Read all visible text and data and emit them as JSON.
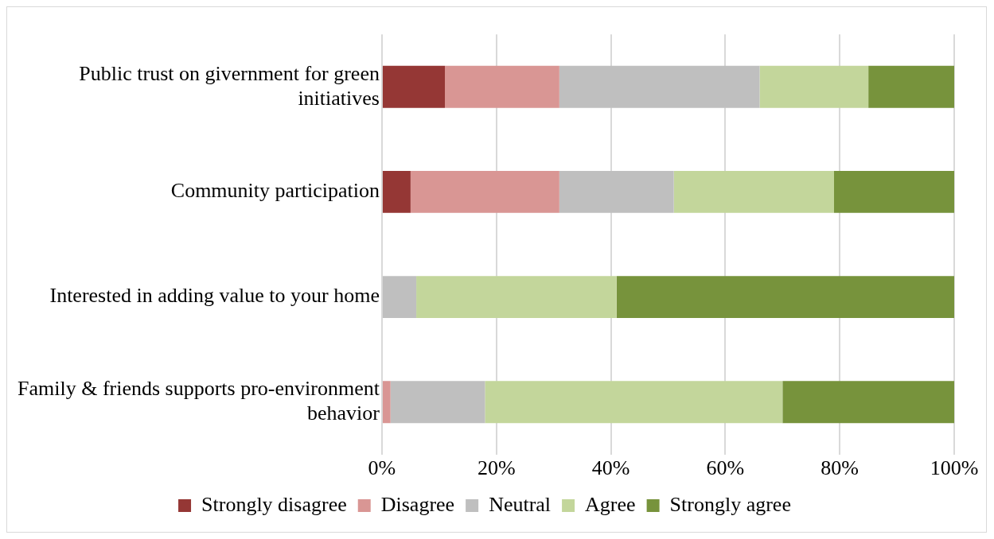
{
  "chart_data": {
    "type": "bar",
    "orientation": "horizontal",
    "stacked": true,
    "categories": [
      "Public trust on givernment for green initiatives",
      "Community participation",
      "Interested in adding value to your home",
      "Family & friends supports pro-environment behavior"
    ],
    "series": [
      {
        "name": "Strongly disagree",
        "color": "#953735",
        "values": [
          11,
          5,
          0,
          0
        ]
      },
      {
        "name": "Disagree",
        "color": "#d99694",
        "values": [
          20,
          26,
          0,
          1.5
        ]
      },
      {
        "name": "Neutral",
        "color": "#bfbfbf",
        "values": [
          35,
          20,
          6,
          16.5
        ]
      },
      {
        "name": "Agree",
        "color": "#c3d69b",
        "values": [
          19,
          28,
          35,
          52
        ]
      },
      {
        "name": "Strongly agree",
        "color": "#77933c",
        "values": [
          15,
          21,
          59,
          30
        ]
      }
    ],
    "xlim": [
      0,
      100
    ],
    "xticks": [
      {
        "value": 0,
        "label": "0%"
      },
      {
        "value": 20,
        "label": "20%"
      },
      {
        "value": 40,
        "label": "40%"
      },
      {
        "value": 60,
        "label": "60%"
      },
      {
        "value": 80,
        "label": "80%"
      },
      {
        "value": 100,
        "label": "100%"
      }
    ],
    "grid": "x",
    "legend": "bottom"
  }
}
